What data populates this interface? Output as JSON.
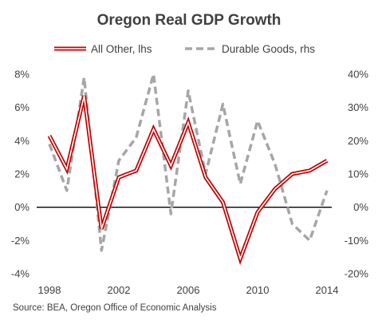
{
  "chart_data": {
    "type": "line",
    "title": "Oregon Real GDP Growth",
    "source": "Source: BEA, Oregon Office of Economic Analysis",
    "x": [
      1998,
      1999,
      2000,
      2001,
      2002,
      2003,
      2004,
      2005,
      2006,
      2007,
      2008,
      2009,
      2010,
      2011,
      2012,
      2013,
      2014
    ],
    "x_ticks": [
      "1998",
      "2002",
      "2006",
      "2010",
      "2014"
    ],
    "y_left": {
      "range": [
        -0.04,
        0.08
      ],
      "ticks": [
        "-4%",
        "-2%",
        "0%",
        "2%",
        "4%",
        "6%",
        "8%"
      ]
    },
    "y_right": {
      "range": [
        -0.2,
        0.4
      ],
      "ticks": [
        "-20%",
        "-10%",
        "0%",
        "10%",
        "20%",
        "30%",
        "40%"
      ]
    },
    "series": [
      {
        "name": "All Other, lhs",
        "axis": "left",
        "color": "#c00000",
        "style": "double-line",
        "values": [
          0.043,
          0.023,
          0.067,
          -0.013,
          0.018,
          0.022,
          0.047,
          0.025,
          0.051,
          0.018,
          0.003,
          -0.031,
          -0.003,
          0.011,
          0.02,
          0.022,
          0.028
        ]
      },
      {
        "name": "Durable Goods, rhs",
        "axis": "right",
        "color": "#a6a6a6",
        "style": "dashed",
        "values": [
          0.19,
          0.05,
          0.39,
          -0.13,
          0.14,
          0.21,
          0.4,
          -0.02,
          0.35,
          0.1,
          0.31,
          0.07,
          0.26,
          0.13,
          -0.05,
          -0.1,
          0.05
        ]
      }
    ],
    "zero_line": true,
    "grid": false,
    "legend_position": "top"
  }
}
